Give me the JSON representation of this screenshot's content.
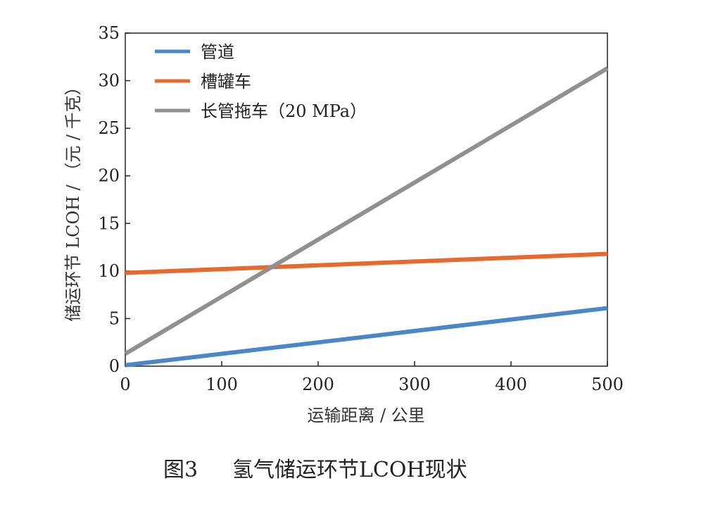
{
  "chart_data": {
    "type": "line",
    "xlabel": "运输距离 / 公里",
    "ylabel": "储运环节 LCOH / （元 / 千克）",
    "xlim": [
      0,
      500
    ],
    "ylim": [
      0,
      35
    ],
    "x_ticks": [
      0,
      100,
      200,
      300,
      400,
      500
    ],
    "y_ticks": [
      0,
      5,
      10,
      15,
      20,
      25,
      30,
      35
    ],
    "grid": false,
    "legend_position": "top-left",
    "series": [
      {
        "name": "管道",
        "color": "#4a86c8",
        "x": [
          0,
          500
        ],
        "values": [
          0.1,
          6.1
        ]
      },
      {
        "name": "槽罐车",
        "color": "#e8692e",
        "x": [
          0,
          500
        ],
        "values": [
          9.8,
          11.8
        ]
      },
      {
        "name": "长管拖车（20 MPa）",
        "color": "#909090",
        "x": [
          0,
          500
        ],
        "values": [
          1.3,
          31.3
        ]
      }
    ]
  },
  "caption": {
    "figure_no": "图3",
    "title": "氢气储运环节LCOH现状"
  }
}
